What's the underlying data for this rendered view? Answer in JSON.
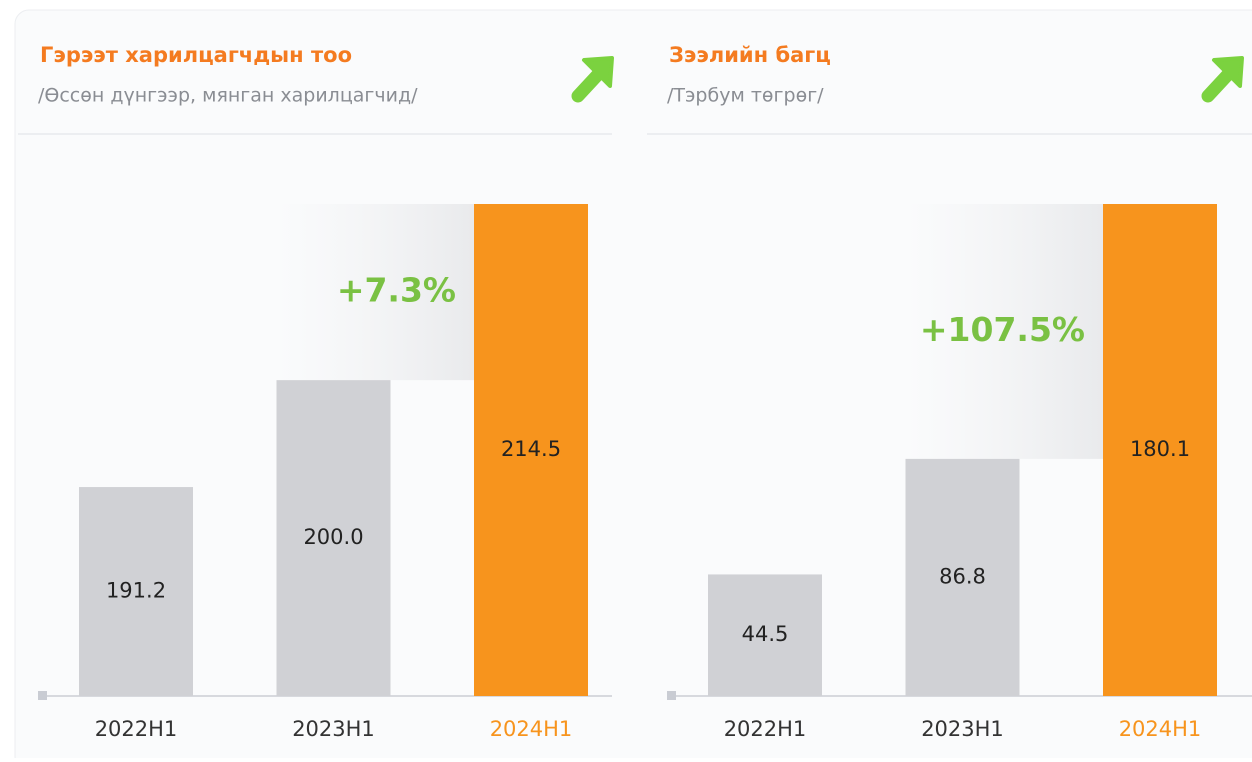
{
  "chart_data": [
    {
      "type": "bar",
      "title": "Гэрээт харилцагчдын тоо",
      "subtitle": "/Өссөн дүнгээр, мянган харилцагчид/",
      "categories": [
        "2022H1",
        "2023H1",
        "2024H1"
      ],
      "values": [
        191.2,
        200.0,
        214.5
      ],
      "value_labels": [
        "191.2",
        "200.0",
        "214.5"
      ],
      "colors": [
        "#d0d1d5",
        "#d0d1d5",
        "#f7941d"
      ],
      "annotation": "+7.3%",
      "annotation_color": "#7ac143",
      "ylim": [
        174,
        214.5
      ]
    },
    {
      "type": "bar",
      "title": "Зээлийн багц",
      "subtitle": "/Тэрбум төгрөг/",
      "categories": [
        "2022H1",
        "2023H1",
        "2024H1"
      ],
      "values": [
        44.5,
        86.8,
        180.1
      ],
      "value_labels": [
        "44.5",
        "86.8",
        "180.1"
      ],
      "colors": [
        "#d0d1d5",
        "#d0d1d5",
        "#f7941d"
      ],
      "annotation": "+107.5%",
      "annotation_color": "#7ac143",
      "ylim": [
        0,
        180.1
      ]
    }
  ]
}
